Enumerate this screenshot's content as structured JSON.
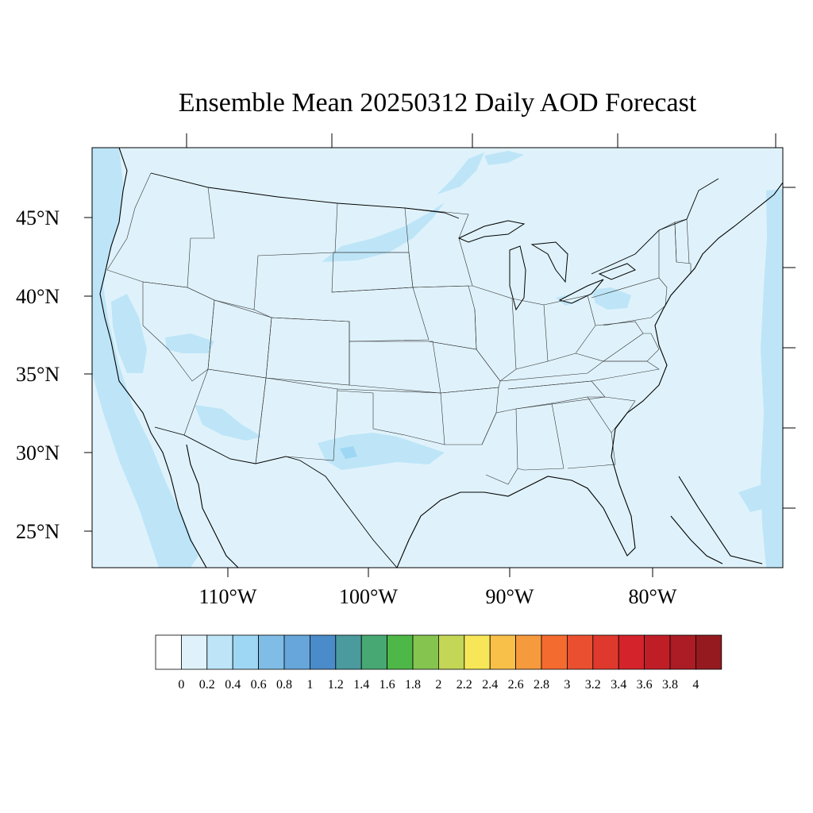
{
  "title": "Ensemble Mean 20250312 Daily AOD Forecast",
  "map": {
    "projection": "lambert-conformal",
    "ocean_color": "#dff2fb",
    "land_color": "#dff2fb",
    "elevated_color": "#bde5f7",
    "highlight_color": "#9ed7f3",
    "coastline_color": "#000000",
    "boundary_color": "#333333"
  },
  "lat_labels": [
    "45°N",
    "40°N",
    "35°N",
    "30°N",
    "25°N"
  ],
  "lon_labels": [
    "110°W",
    "100°W",
    "90°W",
    "80°W"
  ],
  "colorbar": {
    "labels": [
      "0",
      "0.2",
      "0.4",
      "0.6",
      "0.8",
      "1",
      "1.2",
      "1.4",
      "1.6",
      "1.8",
      "2",
      "2.2",
      "2.4",
      "2.6",
      "2.8",
      "3",
      "3.2",
      "3.4",
      "3.6",
      "3.8",
      "4"
    ],
    "colors": [
      "#ffffff",
      "#dff2fb",
      "#bde5f7",
      "#9ed7f3",
      "#7fbde6",
      "#66a6da",
      "#4a8bc9",
      "#4a9a9e",
      "#47a873",
      "#4db847",
      "#86c450",
      "#c3d656",
      "#f7e758",
      "#f8c048",
      "#f69a3e",
      "#f46b30",
      "#ea5030",
      "#df392d",
      "#d4232b",
      "#c01e27",
      "#ab1c24",
      "#941a1f"
    ]
  }
}
